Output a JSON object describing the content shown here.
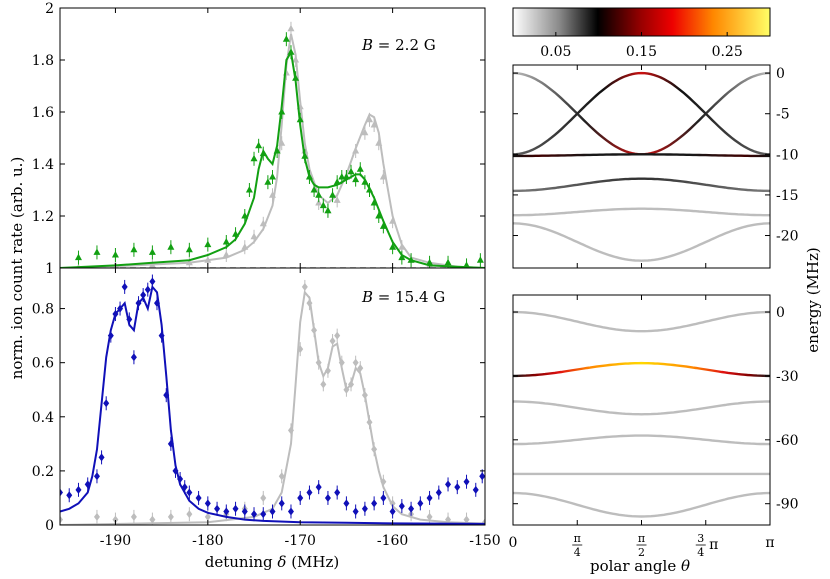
{
  "chart_data": [
    {
      "type": "scatter",
      "panel": "top-left",
      "annotation": {
        "var": "B",
        "text": " = 2.2 G"
      },
      "xlim": [
        -196,
        -150
      ],
      "ylim": [
        1,
        2
      ],
      "xticks": [
        -190,
        -180,
        -170,
        -160,
        -150
      ],
      "yticks": [
        1,
        1.2,
        1.4,
        1.6,
        1.8,
        2
      ],
      "yticklabels": [
        "1",
        "1.2",
        "1.4",
        "1.6",
        "1.8",
        "2"
      ],
      "baseline": 1,
      "colors": {
        "green": "#12a012",
        "gray": "#bdbdbd",
        "baseline": "#000000"
      },
      "series": [
        {
          "name": "data-green",
          "x": [
            -194,
            -192,
            -190,
            -188,
            -186,
            -184,
            -182,
            -180,
            -178,
            -177,
            -176,
            -175.5,
            -175,
            -174.5,
            -174,
            -173.5,
            -173,
            -172.5,
            -172,
            -171.5,
            -171,
            -170.5,
            -170,
            -169.5,
            -169,
            -168.5,
            -168,
            -167.5,
            -167,
            -166.5,
            -166,
            -165.5,
            -165,
            -164.5,
            -164,
            -163.5,
            -163,
            -162.5,
            -162,
            -161.5,
            -161,
            -160,
            -159,
            -158,
            -156,
            -154,
            -152,
            -150.5
          ],
          "y": [
            1.04,
            1.06,
            1.05,
            1.07,
            1.06,
            1.08,
            1.07,
            1.09,
            1.1,
            1.13,
            1.2,
            1.3,
            1.42,
            1.47,
            1.44,
            1.33,
            1.35,
            1.45,
            1.6,
            1.88,
            1.83,
            1.73,
            1.57,
            1.43,
            1.35,
            1.3,
            1.28,
            1.24,
            1.22,
            1.28,
            1.33,
            1.35,
            1.35,
            1.37,
            1.34,
            1.38,
            1.33,
            1.3,
            1.25,
            1.2,
            1.16,
            1.08,
            1.04,
            1.03,
            1.02,
            1.02,
            1.01,
            1.03
          ]
        },
        {
          "name": "data-gray",
          "x": [
            -194,
            -190,
            -186,
            -182,
            -180,
            -178,
            -176,
            -175,
            -174,
            -173,
            -172,
            -171.5,
            -171,
            -170.5,
            -170,
            -169.5,
            -169,
            -168,
            -167,
            -166,
            -165,
            -164,
            -163,
            -162.5,
            -162,
            -161.5,
            -161,
            -160,
            -159,
            -158,
            -156,
            -152
          ],
          "y": [
            1.0,
            1.01,
            1.01,
            1.02,
            1.03,
            1.05,
            1.08,
            1.12,
            1.17,
            1.28,
            1.48,
            1.75,
            1.92,
            1.8,
            1.62,
            1.45,
            1.35,
            1.25,
            1.22,
            1.26,
            1.35,
            1.45,
            1.52,
            1.57,
            1.55,
            1.48,
            1.35,
            1.18,
            1.08,
            1.03,
            1.01,
            1.0
          ]
        },
        {
          "name": "fit-green",
          "x": [
            -196,
            -190,
            -186,
            -182,
            -180,
            -178,
            -177,
            -176,
            -175,
            -174.5,
            -174,
            -173.5,
            -173,
            -172.5,
            -172,
            -171.5,
            -171,
            -170.5,
            -170,
            -169.5,
            -169,
            -168.5,
            -168,
            -167,
            -166,
            -165,
            -164,
            -163.5,
            -163,
            -162,
            -161,
            -160,
            -159,
            -158,
            -156,
            -153,
            -150
          ],
          "y": [
            1.0,
            1.01,
            1.02,
            1.03,
            1.05,
            1.08,
            1.11,
            1.17,
            1.27,
            1.38,
            1.45,
            1.42,
            1.4,
            1.47,
            1.62,
            1.8,
            1.83,
            1.72,
            1.55,
            1.42,
            1.35,
            1.32,
            1.31,
            1.31,
            1.32,
            1.34,
            1.36,
            1.36,
            1.34,
            1.27,
            1.18,
            1.1,
            1.05,
            1.03,
            1.01,
            1.005,
            1.0
          ]
        },
        {
          "name": "fit-gray",
          "x": [
            -196,
            -188,
            -182,
            -178,
            -176,
            -175,
            -174,
            -173,
            -172.5,
            -172,
            -171.5,
            -171,
            -170.5,
            -170,
            -169.5,
            -169,
            -168,
            -167,
            -166,
            -165,
            -164,
            -163,
            -162.5,
            -162,
            -161.5,
            -161,
            -160,
            -159,
            -158,
            -156,
            -153,
            -150
          ],
          "y": [
            1.0,
            1.01,
            1.02,
            1.04,
            1.07,
            1.1,
            1.15,
            1.24,
            1.35,
            1.55,
            1.78,
            1.9,
            1.82,
            1.64,
            1.48,
            1.38,
            1.28,
            1.25,
            1.28,
            1.36,
            1.46,
            1.55,
            1.59,
            1.58,
            1.52,
            1.4,
            1.2,
            1.09,
            1.04,
            1.02,
            1.005,
            1.0
          ]
        }
      ]
    },
    {
      "type": "scatter",
      "panel": "bottom-left",
      "annotation": {
        "var": "B",
        "text": " = 15.4 G"
      },
      "xlim": [
        -196,
        -150
      ],
      "ylim": [
        0,
        0.95
      ],
      "xticks": [
        -190,
        -180,
        -170,
        -160,
        -150
      ],
      "xticklabels": [
        "-190",
        "-180",
        "-170",
        "-160",
        "-150"
      ],
      "yticks": [
        0,
        0.2,
        0.4,
        0.6,
        0.8
      ],
      "yticklabels": [
        "0",
        "0.2",
        "0.4",
        "0.6",
        "0.8"
      ],
      "xlabel": {
        "pre": "detuning ",
        "var": "δ",
        "post": " (MHz)"
      },
      "colors": {
        "blue": "#1010b8",
        "gray": "#bdbdbd"
      },
      "series": [
        {
          "name": "data-blue",
          "x": [
            -196,
            -195,
            -194,
            -193,
            -192,
            -191.5,
            -191,
            -190.5,
            -190,
            -189.5,
            -189,
            -188.5,
            -188,
            -187.5,
            -187,
            -186.5,
            -186,
            -185.5,
            -185,
            -184.5,
            -184,
            -183.5,
            -183,
            -182.5,
            -182,
            -181,
            -180,
            -179,
            -178,
            -177,
            -176,
            -175,
            -174,
            -173,
            -172,
            -171,
            -170,
            -169,
            -168,
            -167,
            -166,
            -165,
            -164,
            -163,
            -162,
            -161,
            -160,
            -159,
            -158,
            -157,
            -156,
            -155,
            -154,
            -153,
            -152,
            -151,
            -150.3
          ],
          "y": [
            0.12,
            0.11,
            0.13,
            0.15,
            0.18,
            0.25,
            0.45,
            0.7,
            0.78,
            0.8,
            0.88,
            0.76,
            0.62,
            0.82,
            0.85,
            0.87,
            0.9,
            0.82,
            0.7,
            0.48,
            0.3,
            0.2,
            0.17,
            0.14,
            0.12,
            0.1,
            0.08,
            0.06,
            0.05,
            0.06,
            0.05,
            0.04,
            0.04,
            0.05,
            0.08,
            0.05,
            0.1,
            0.12,
            0.14,
            0.1,
            0.12,
            0.08,
            0.05,
            0.06,
            0.08,
            0.1,
            0.05,
            0.07,
            0.06,
            0.08,
            0.1,
            0.12,
            0.15,
            0.14,
            0.16,
            0.13,
            0.18
          ]
        },
        {
          "name": "data-gray",
          "x": [
            -196,
            -192,
            -190,
            -188,
            -186,
            -184,
            -182,
            -180,
            -178,
            -176,
            -174,
            -172,
            -171,
            -170,
            -169.5,
            -169,
            -168.5,
            -168,
            -167.5,
            -167,
            -166.5,
            -166,
            -165.5,
            -165,
            -164.5,
            -164,
            -163.5,
            -163,
            -162.5,
            -162,
            -161,
            -160,
            -158,
            -156,
            -154,
            -152,
            -150
          ],
          "y": [
            0.02,
            0.03,
            0.02,
            0.03,
            0.02,
            0.03,
            0.04,
            0.03,
            0.04,
            0.06,
            0.1,
            0.18,
            0.35,
            0.65,
            0.88,
            0.82,
            0.72,
            0.6,
            0.52,
            0.57,
            0.68,
            0.7,
            0.6,
            0.5,
            0.52,
            0.6,
            0.58,
            0.48,
            0.38,
            0.28,
            0.16,
            0.08,
            0.04,
            0.03,
            0.02,
            0.02,
            0.01
          ]
        },
        {
          "name": "fit-blue",
          "x": [
            -196,
            -195,
            -194,
            -193,
            -192.5,
            -192,
            -191.5,
            -191,
            -190.5,
            -190,
            -189.5,
            -189,
            -188.5,
            -188,
            -187.5,
            -187,
            -186.5,
            -186,
            -185.5,
            -185,
            -184.5,
            -184,
            -183.5,
            -183,
            -182,
            -181,
            -180,
            -178,
            -176,
            -174,
            -170,
            -165,
            -160,
            -155,
            -150
          ],
          "y": [
            0.05,
            0.06,
            0.08,
            0.12,
            0.18,
            0.28,
            0.45,
            0.62,
            0.72,
            0.78,
            0.8,
            0.82,
            0.74,
            0.72,
            0.82,
            0.84,
            0.8,
            0.88,
            0.86,
            0.74,
            0.55,
            0.35,
            0.22,
            0.15,
            0.09,
            0.06,
            0.045,
            0.03,
            0.02,
            0.015,
            0.01,
            0.008,
            0.006,
            0.005,
            0.004
          ]
        },
        {
          "name": "fit-gray",
          "x": [
            -196,
            -180,
            -175,
            -173,
            -172,
            -171,
            -170.5,
            -170,
            -169.5,
            -169,
            -168.5,
            -168,
            -167.5,
            -167,
            -166.5,
            -166,
            -165.5,
            -165,
            -164.5,
            -164,
            -163.5,
            -163,
            -162.5,
            -162,
            -161.5,
            -161,
            -160,
            -159,
            -157,
            -154,
            -150
          ],
          "y": [
            0.0,
            0.01,
            0.03,
            0.06,
            0.12,
            0.3,
            0.52,
            0.75,
            0.86,
            0.84,
            0.72,
            0.6,
            0.55,
            0.58,
            0.66,
            0.67,
            0.58,
            0.5,
            0.52,
            0.58,
            0.56,
            0.48,
            0.38,
            0.28,
            0.2,
            0.14,
            0.07,
            0.04,
            0.02,
            0.01,
            0.005
          ]
        }
      ]
    },
    {
      "type": "line",
      "panel": "top-right",
      "xlim": [
        0,
        3.1416
      ],
      "ylim": [
        -24,
        1
      ],
      "yticks": [
        0,
        -5,
        -10,
        -15,
        -20
      ],
      "yticklabels": [
        "0",
        "-5",
        "-10",
        "-15",
        "-20"
      ],
      "series": [
        {
          "name": "level-1",
          "formula": "-5 + 5*cos(2θ)",
          "color_stops": [
            [
              0,
              "#bdbdbd"
            ],
            [
              0.28,
              "#202020"
            ],
            [
              0.5,
              "#cc1010"
            ],
            [
              0.72,
              "#202020"
            ],
            [
              1,
              "#bdbdbd"
            ]
          ]
        },
        {
          "name": "level-2",
          "formula": "-5 - 5*cos(2θ)",
          "color_stops": [
            [
              0,
              "#606060"
            ],
            [
              0.35,
              "#101010"
            ],
            [
              0.5,
              "#cc1010"
            ],
            [
              0.65,
              "#101010"
            ],
            [
              1,
              "#606060"
            ]
          ]
        },
        {
          "name": "level-3",
          "formula": "-10.2 + 0.2*sin²θ",
          "color_stops": [
            [
              0,
              "#101010"
            ],
            [
              0.1,
              "#400000"
            ],
            [
              0.3,
              "#181818"
            ],
            [
              0.7,
              "#181818"
            ],
            [
              0.9,
              "#400000"
            ],
            [
              1,
              "#101010"
            ]
          ]
        },
        {
          "name": "level-4",
          "formula": "-14.5 + 1.5*sin²θ",
          "color_stops": [
            [
              0,
              "#7a7a7a"
            ],
            [
              0.5,
              "#303030"
            ],
            [
              1,
              "#7a7a7a"
            ]
          ]
        },
        {
          "name": "level-5",
          "formula": "-17.5 + 0.8*sin²θ",
          "color_stops": [
            [
              0,
              "#bdbdbd"
            ],
            [
              1,
              "#bdbdbd"
            ]
          ]
        },
        {
          "name": "level-6",
          "formula": "-18.5 - 4.6*sin²θ",
          "color_stops": [
            [
              0,
              "#bdbdbd"
            ],
            [
              1,
              "#bdbdbd"
            ]
          ]
        }
      ]
    },
    {
      "type": "line",
      "panel": "bottom-right",
      "xlim": [
        0,
        3.1416
      ],
      "ylim": [
        -100,
        8
      ],
      "yticks": [
        0,
        -30,
        -60,
        -90
      ],
      "yticklabels": [
        "0",
        "-30",
        "-60",
        "-90"
      ],
      "xticks": [
        "0",
        "π/4",
        "π/2",
        "3/4 π",
        "π"
      ],
      "xlabel": {
        "pre": "polar angle ",
        "var": "θ"
      },
      "series": [
        {
          "name": "level-1",
          "formula": "0 - 9*sin²θ",
          "color_stops": [
            [
              0,
              "#bdbdbd"
            ],
            [
              1,
              "#bdbdbd"
            ]
          ]
        },
        {
          "name": "level-2",
          "formula": "-30 + 6*sin²θ",
          "color_stops": [
            [
              0,
              "#202020"
            ],
            [
              0.08,
              "#800000"
            ],
            [
              0.18,
              "#e01010"
            ],
            [
              0.3,
              "#ff8800"
            ],
            [
              0.5,
              "#ffd800"
            ],
            [
              0.7,
              "#ff8800"
            ],
            [
              0.82,
              "#e01010"
            ],
            [
              0.92,
              "#800000"
            ],
            [
              1,
              "#202020"
            ]
          ]
        },
        {
          "name": "level-3",
          "formula": "-42 - 6*sin²θ",
          "color_stops": [
            [
              0,
              "#bdbdbd"
            ],
            [
              1,
              "#bdbdbd"
            ]
          ]
        },
        {
          "name": "level-4",
          "formula": "-62 + 4*sin²θ",
          "color_stops": [
            [
              0,
              "#bdbdbd"
            ],
            [
              1,
              "#bdbdbd"
            ]
          ]
        },
        {
          "name": "level-5",
          "formula": "-76",
          "color_stops": [
            [
              0,
              "#bdbdbd"
            ],
            [
              1,
              "#bdbdbd"
            ]
          ]
        },
        {
          "name": "level-6",
          "formula": "-85 - 11*sin²θ",
          "color_stops": [
            [
              0,
              "#bdbdbd"
            ],
            [
              1,
              "#bdbdbd"
            ]
          ]
        }
      ]
    }
  ],
  "colorbar": {
    "range": [
      0,
      0.3
    ],
    "ticks": [
      0.05,
      0.15,
      0.25
    ],
    "ticklabels": [
      "0.05",
      "0.15",
      "0.25"
    ],
    "stops": [
      [
        0,
        "#ffffff"
      ],
      [
        0.18,
        "#8a8a8a"
      ],
      [
        0.33,
        "#000000"
      ],
      [
        0.5,
        "#990000"
      ],
      [
        0.62,
        "#ee0000"
      ],
      [
        0.78,
        "#ff8800"
      ],
      [
        1,
        "#ffff66"
      ]
    ]
  },
  "shared_labels": {
    "left_ylabel": "norm. ion count rate (arb. u.)",
    "right_ylabel": "energy (MHz)"
  }
}
